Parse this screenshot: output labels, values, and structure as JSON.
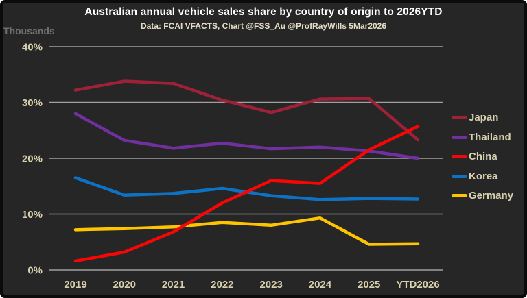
{
  "style": {
    "canvas_bg": "#262626",
    "frame_bg": "#0b0b0b",
    "grid_color": "#9f9f9f",
    "axis_text_color": "#d8d1af",
    "title_color": "#ffffff",
    "subtitle_color": "#e5dec6",
    "unit_label_color": "#6f6f6f"
  },
  "chart_data": {
    "type": "line",
    "title": "Australian annual vehicle sales share by country of origin to 2026YTD",
    "subtitle": "Data: FCAI VFACTS, Chart @FSS_Au @ProfRayWills 5Mar2026",
    "axis_unit_label": "Thousands",
    "x": [
      "2019",
      "2020",
      "2021",
      "2022",
      "2023",
      "2024",
      "2025",
      "YTD2026"
    ],
    "xlabel": "",
    "ylabel": "",
    "ylim": [
      0,
      40
    ],
    "ytick_values": [
      0,
      10,
      20,
      30,
      40
    ],
    "ytick_labels": [
      "0%",
      "10%",
      "20%",
      "30%",
      "40%"
    ],
    "grid": true,
    "legend_position": "right",
    "series": [
      {
        "name": "Japan",
        "color": "#9e2138",
        "values": [
          32.2,
          33.8,
          33.4,
          30.4,
          28.2,
          30.6,
          30.7,
          23.3
        ]
      },
      {
        "name": "Thailand",
        "color": "#7030a0",
        "values": [
          28.0,
          23.2,
          21.8,
          22.7,
          21.7,
          22.0,
          21.3,
          20.0
        ]
      },
      {
        "name": "China",
        "color": "#fa0505",
        "values": [
          1.6,
          3.2,
          6.8,
          12.0,
          16.0,
          15.5,
          21.5,
          25.7
        ]
      },
      {
        "name": "Korea",
        "color": "#0e72c4",
        "values": [
          16.5,
          13.4,
          13.7,
          14.6,
          13.3,
          12.6,
          12.8,
          12.7
        ]
      },
      {
        "name": "Germany",
        "color": "#ffc400",
        "values": [
          7.2,
          7.4,
          7.7,
          8.5,
          8.0,
          9.3,
          4.6,
          4.7
        ]
      }
    ],
    "paint_order": [
      "Japan",
      "Thailand",
      "Korea",
      "Germany",
      "China"
    ]
  }
}
